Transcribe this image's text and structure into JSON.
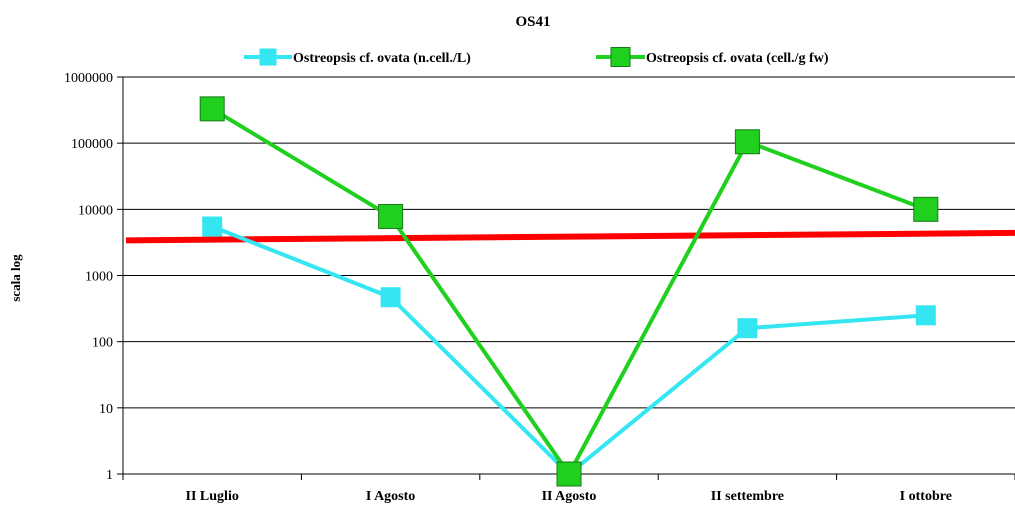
{
  "chart_data": {
    "type": "line",
    "title": "OS41",
    "xlabel": "",
    "ylabel": "scala log",
    "y_scale": "log",
    "ylim": [
      1,
      1000000
    ],
    "y_ticks": [
      "1",
      "10",
      "100",
      "1000",
      "10000",
      "100000",
      "1000000"
    ],
    "categories": [
      "II Luglio",
      "I Agosto",
      "II Agosto",
      "II settembre",
      "I ottobre"
    ],
    "series": [
      {
        "name": "Ostreopsis cf. ovata (n.cell./L)",
        "color": "#33e6f2",
        "marker": "square",
        "values": [
          5500,
          470,
          1,
          160,
          250
        ]
      },
      {
        "name": "Ostreopsis cf. ovata (cell./g fw)",
        "color": "#1fd01f",
        "marker": "square",
        "values": [
          330000,
          7800,
          1,
          105000,
          10000
        ]
      }
    ],
    "trend_line": {
      "color": "#ff0000",
      "start": 3400,
      "end": 4400
    },
    "legend_position": "top",
    "grid": "horizontal"
  }
}
